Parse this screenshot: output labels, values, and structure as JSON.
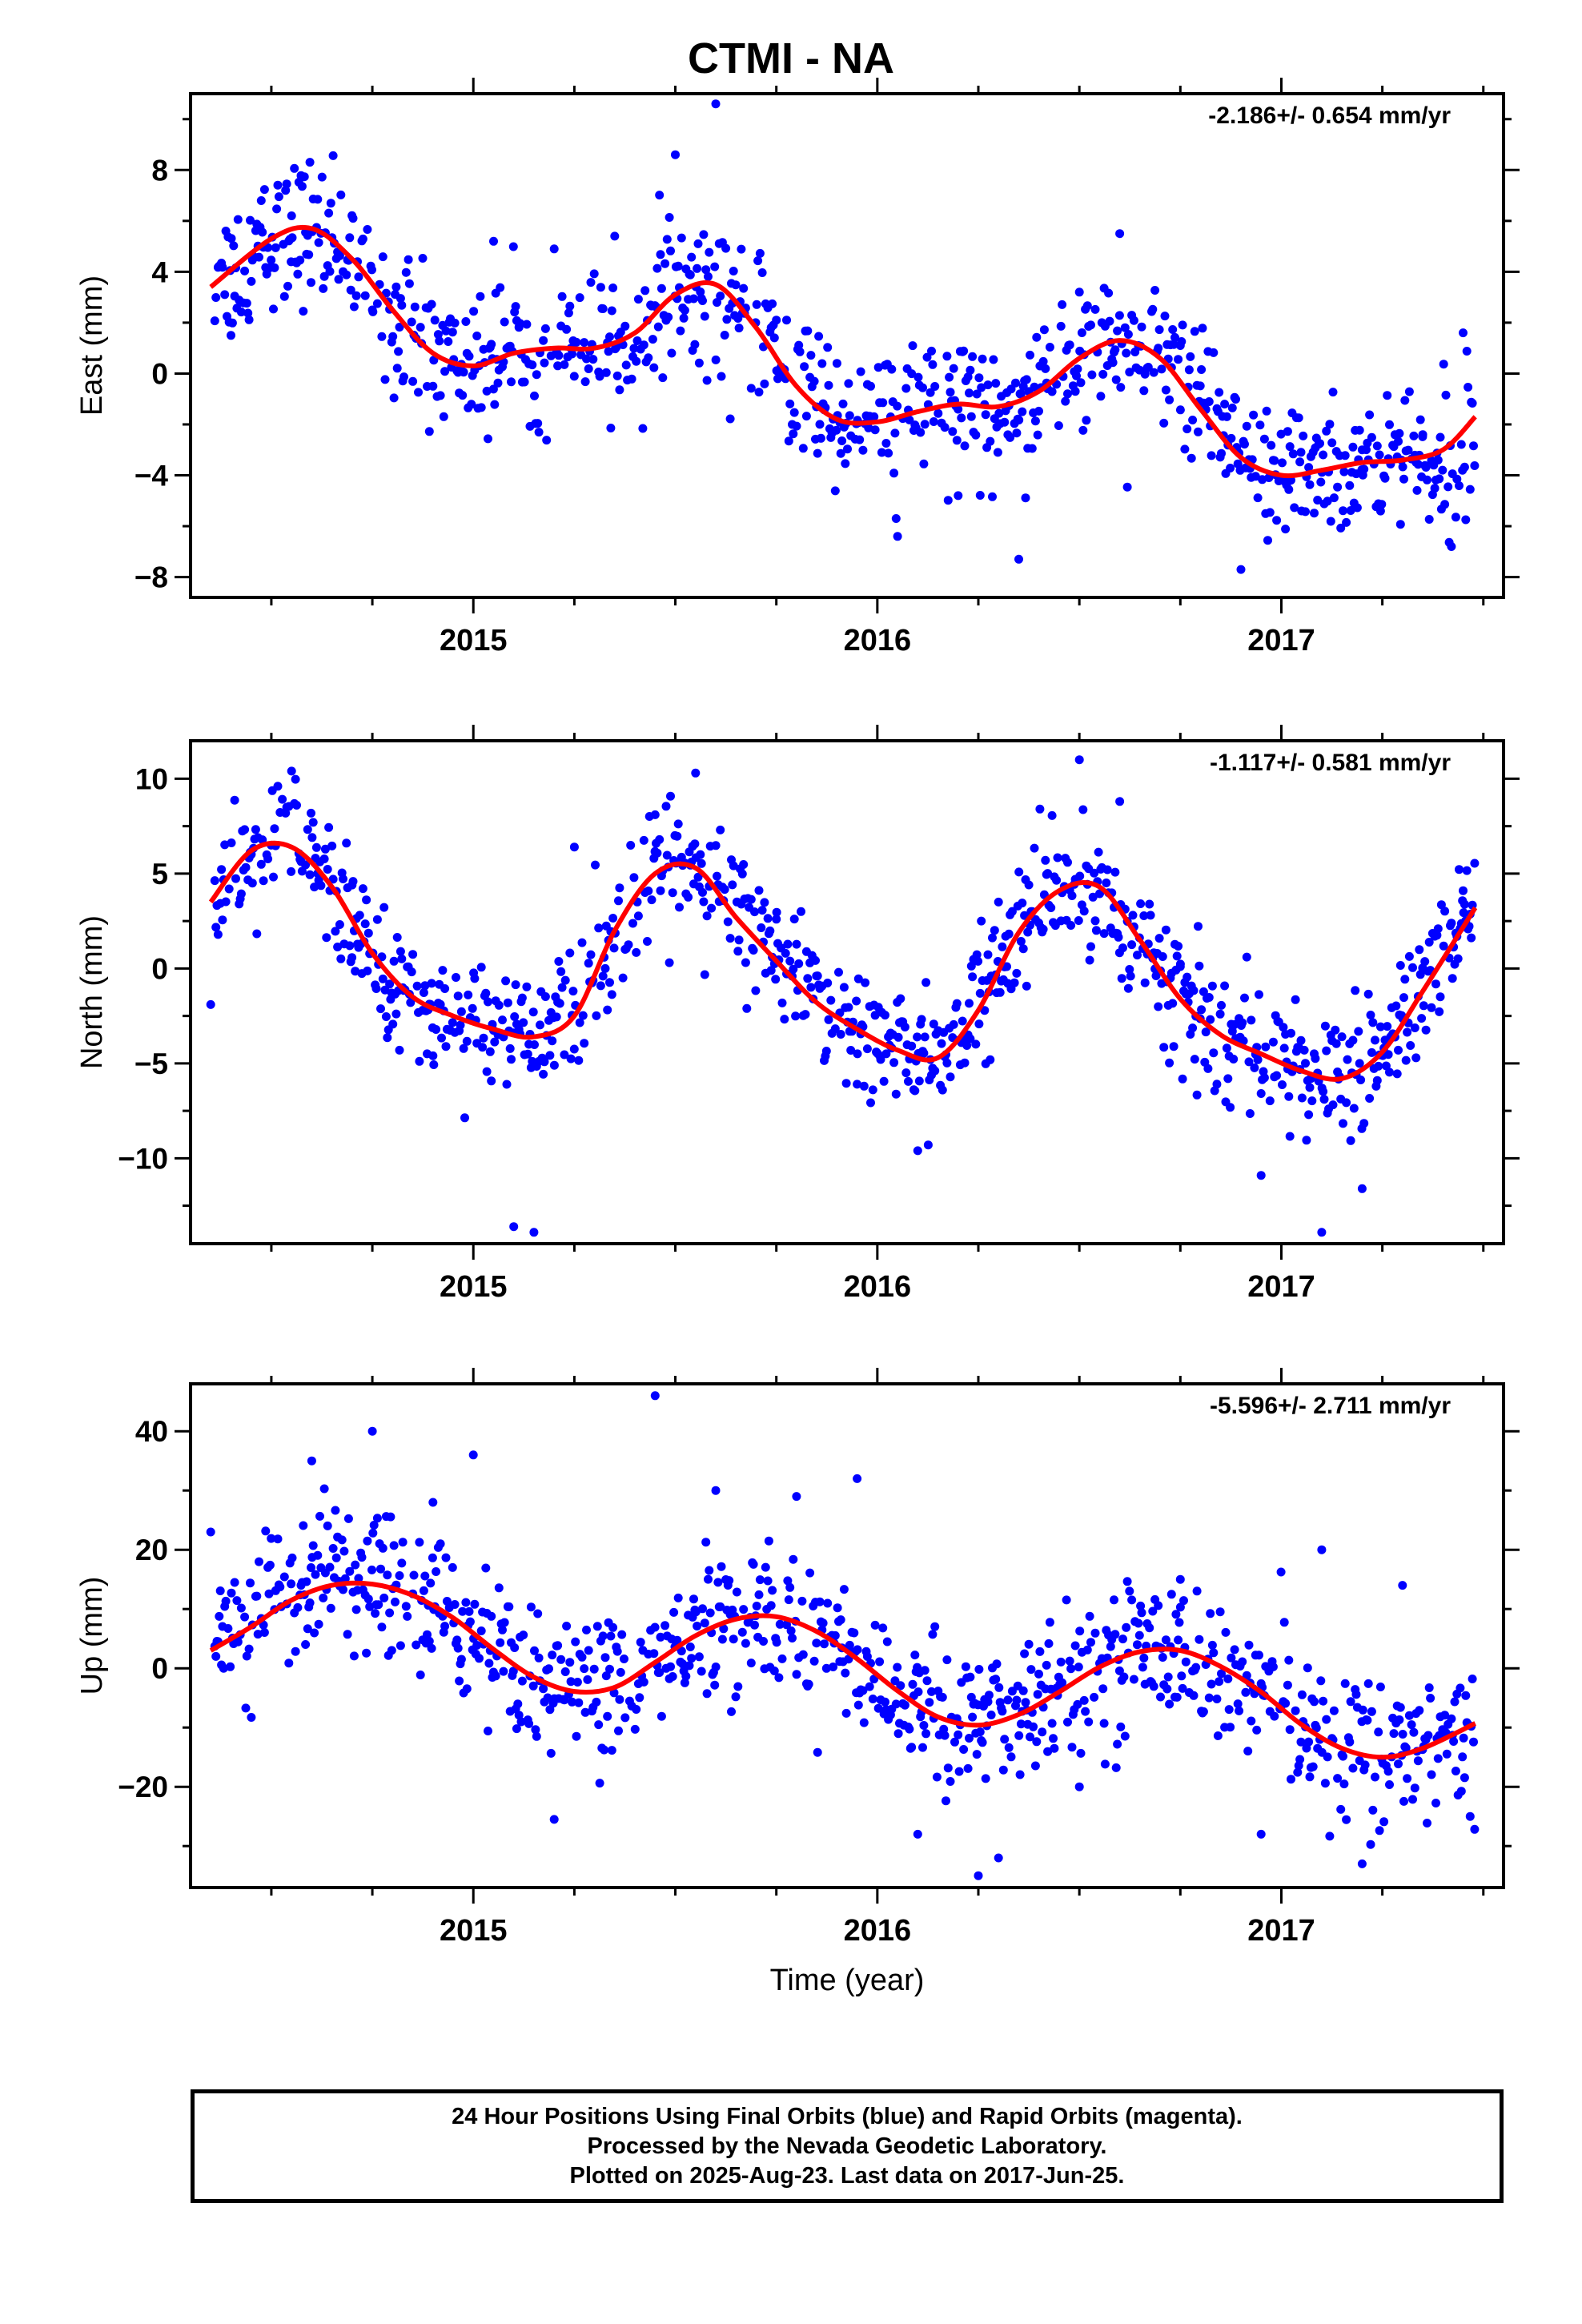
{
  "title": "CTMI - NA",
  "footer": {
    "line1": "24 Hour Positions Using Final Orbits (blue) and Rapid Orbits (magenta).",
    "line2": "Processed by the Nevada Geodetic Laboratory.",
    "line3": "Plotted on 2025-Aug-23. Last data on 2017-Jun-25."
  },
  "colors": {
    "final_orbits": "#0000ff",
    "rapid_orbits": "#ff00ff",
    "fit": "#ff0000",
    "frame": "#000000"
  },
  "chart_data": [
    {
      "type": "scatter",
      "title": "CTMI - NA",
      "ylabel": "East (mm)",
      "xlabel": "",
      "rate_label": "-2.186+/- 0.654 mm/yr",
      "xlim": [
        2014.3,
        2017.55
      ],
      "ylim": [
        -8.8,
        11
      ],
      "x_ticks": [
        2015,
        2016,
        2017
      ],
      "x_tick_labels": [
        "2015",
        "2016",
        "2017"
      ],
      "y_ticks": [
        -8,
        -4,
        0,
        4,
        8
      ],
      "y_tick_labels": [
        "−8",
        "−4",
        "0",
        "4",
        "8"
      ],
      "grid": false,
      "fit_curve": {
        "x": [
          2014.35,
          2014.5,
          2014.6,
          2014.7,
          2014.8,
          2014.9,
          2015.0,
          2015.1,
          2015.2,
          2015.3,
          2015.4,
          2015.5,
          2015.6,
          2015.7,
          2015.8,
          2015.9,
          2016.0,
          2016.1,
          2016.2,
          2016.3,
          2016.4,
          2016.5,
          2016.6,
          2016.7,
          2016.8,
          2016.9,
          2017.0,
          2017.1,
          2017.2,
          2017.3,
          2017.4,
          2017.48
        ],
        "y": [
          3.4,
          5.3,
          5.7,
          4.5,
          2.5,
          0.8,
          0.3,
          0.8,
          1.0,
          1.0,
          1.6,
          3.1,
          3.5,
          1.8,
          -0.5,
          -1.8,
          -1.9,
          -1.5,
          -1.2,
          -1.3,
          -0.7,
          0.6,
          1.3,
          0.6,
          -1.4,
          -3.3,
          -4.0,
          -3.8,
          -3.5,
          -3.4,
          -3.0,
          -1.7
        ]
      },
      "series": [
        {
          "name": "Final Orbits",
          "trend": [
            3.4,
            5.5,
            4.6,
            0.6,
            0.9,
            1.3,
            3.4,
            1.2,
            -1.9,
            -1.3,
            -1.1,
            1.2,
            0.4,
            -3.2,
            -3.9,
            -3.5,
            -3.2,
            -1.7
          ],
          "scatter_sd": 1.4
        }
      ],
      "sample_points": {
        "x": [
          2014.4,
          2014.55,
          2014.75,
          2014.9,
          2015.05,
          2015.2,
          2015.35,
          2015.5,
          2015.6,
          2015.75,
          2015.9,
          2016.05,
          2016.2,
          2016.35,
          2016.5,
          2016.6,
          2016.75,
          2016.9,
          2017.05,
          2017.2,
          2017.35,
          2017.45
        ],
        "y": [
          1.5,
          6.2,
          2.5,
          -0.5,
          5.2,
          4.9,
          5.4,
          8.6,
          10.6,
          2.1,
          0.4,
          -6.4,
          -4.8,
          -7.3,
          3.2,
          5.5,
          1.1,
          -7.7,
          -5.4,
          -3.0,
          -2.4,
          1.6
        ]
      }
    },
    {
      "type": "scatter",
      "ylabel": "North (mm)",
      "xlabel": "",
      "rate_label": "-1.117+/- 0.581 mm/yr",
      "xlim": [
        2014.3,
        2017.55
      ],
      "ylim": [
        -14.5,
        12
      ],
      "x_ticks": [
        2015,
        2016,
        2017
      ],
      "x_tick_labels": [
        "2015",
        "2016",
        "2017"
      ],
      "y_ticks": [
        -10,
        -5,
        0,
        5,
        10
      ],
      "y_tick_labels": [
        "−10",
        "−5",
        "0",
        "5",
        "10"
      ],
      "grid": false,
      "fit_curve": {
        "x": [
          2014.35,
          2014.45,
          2014.55,
          2014.65,
          2014.75,
          2014.85,
          2014.95,
          2015.05,
          2015.15,
          2015.25,
          2015.35,
          2015.45,
          2015.55,
          2015.65,
          2015.75,
          2015.85,
          2015.95,
          2016.05,
          2016.15,
          2016.25,
          2016.35,
          2016.45,
          2016.55,
          2016.65,
          2016.75,
          2016.85,
          2016.95,
          2017.05,
          2017.15,
          2017.25,
          2017.35,
          2017.48
        ],
        "y": [
          3.5,
          6.2,
          6.4,
          4.3,
          0.8,
          -1.5,
          -2.5,
          -3.2,
          -3.6,
          -2.5,
          2.0,
          5.0,
          5.3,
          2.7,
          0.4,
          -1.8,
          -3.2,
          -4.3,
          -4.7,
          -2.2,
          1.9,
          4.1,
          4.3,
          1.5,
          -1.6,
          -3.5,
          -4.5,
          -5.4,
          -5.8,
          -4.4,
          -1.2,
          3.2
        ]
      },
      "series": [
        {
          "name": "Final Orbits",
          "scatter_sd": 1.6
        }
      ],
      "sample_points": {
        "x": [
          2014.35,
          2014.55,
          2014.7,
          2014.9,
          2015.1,
          2015.15,
          2015.25,
          2015.45,
          2015.55,
          2015.75,
          2015.95,
          2016.1,
          2016.3,
          2016.5,
          2016.6,
          2016.75,
          2016.95,
          2017.1,
          2017.2,
          2017.45
        ],
        "y": [
          -1.9,
          10.4,
          4.4,
          -4.6,
          -13.6,
          -13.9,
          6.4,
          8.1,
          10.3,
          2.6,
          -6.1,
          -9.6,
          3.5,
          11.0,
          8.8,
          0.1,
          -10.9,
          -13.9,
          -11.6,
          4.1
        ]
      }
    },
    {
      "type": "scatter",
      "ylabel": "Up (mm)",
      "xlabel": "Time (year)",
      "rate_label": "-5.596+/- 2.711 mm/yr",
      "xlim": [
        2014.3,
        2017.55
      ],
      "ylim": [
        -37,
        48
      ],
      "x_ticks": [
        2015,
        2016,
        2017
      ],
      "x_tick_labels": [
        "2015",
        "2016",
        "2017"
      ],
      "y_ticks": [
        -20,
        0,
        20,
        40
      ],
      "y_tick_labels": [
        "−20",
        "0",
        "20",
        "40"
      ],
      "grid": false,
      "fit_curve": {
        "x": [
          2014.35,
          2014.45,
          2014.55,
          2014.65,
          2014.75,
          2014.85,
          2014.95,
          2015.05,
          2015.15,
          2015.25,
          2015.35,
          2015.45,
          2015.55,
          2015.65,
          2015.75,
          2015.85,
          2015.95,
          2016.05,
          2016.15,
          2016.25,
          2016.35,
          2016.45,
          2016.55,
          2016.65,
          2016.75,
          2016.85,
          2016.95,
          2017.05,
          2017.15,
          2017.25,
          2017.35,
          2017.48
        ],
        "y": [
          3.0,
          7.0,
          11.5,
          14.0,
          14.2,
          12.3,
          8.5,
          3.2,
          -1.5,
          -3.9,
          -3.2,
          1.0,
          5.5,
          8.3,
          8.7,
          6.2,
          1.6,
          -3.8,
          -8.2,
          -9.6,
          -7.8,
          -4.0,
          0.2,
          2.8,
          3.0,
          0.3,
          -4.0,
          -9.5,
          -13.5,
          -15.0,
          -13.5,
          -9.3
        ]
      },
      "series": [
        {
          "name": "Final Orbits",
          "scatter_sd": 6.0
        }
      ],
      "sample_points": {
        "x": [
          2014.35,
          2014.6,
          2014.75,
          2014.9,
          2015.0,
          2015.2,
          2015.45,
          2015.6,
          2015.8,
          2015.95,
          2016.1,
          2016.25,
          2016.3,
          2016.5,
          2016.75,
          2016.95,
          2017.1,
          2017.2,
          2017.3
        ],
        "y": [
          23.0,
          35.0,
          40.0,
          28.0,
          36.0,
          -25.5,
          46.0,
          30.0,
          29.0,
          32.0,
          -28.0,
          -35.0,
          -32.0,
          -20.0,
          15.0,
          -28.0,
          20.0,
          -33.0,
          14.0
        ]
      }
    }
  ]
}
